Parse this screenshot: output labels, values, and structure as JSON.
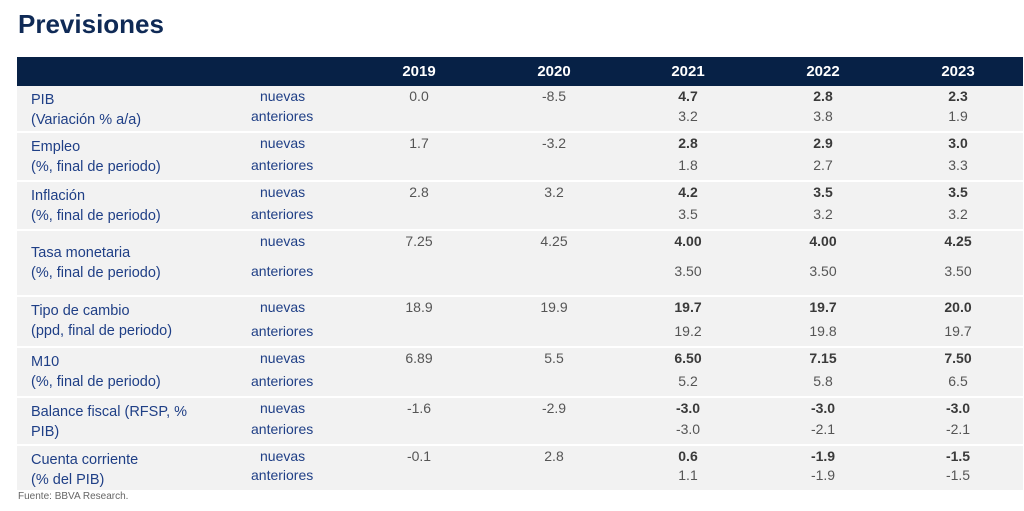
{
  "title": "Previsiones",
  "source": "Fuente: BBVA Research.",
  "colors": {
    "header_bg": "#072146",
    "label_text": "#1f3f86",
    "row_shade": "#f2f2f2"
  },
  "years": [
    "2019",
    "2020",
    "2021",
    "2022",
    "2023"
  ],
  "rows": [
    {
      "label1": "PIB",
      "label2": "(Variación % a/a)",
      "new_label": "nuevas",
      "old_label": "anteriores",
      "nuevas": [
        "0.0",
        "-8.5",
        "4.7",
        "2.8",
        "2.3"
      ],
      "anteriores": [
        "",
        "",
        "3.2",
        "3.8",
        "1.9"
      ]
    },
    {
      "label1": "Empleo",
      "label2": "(%, final de periodo)",
      "new_label": "nuevas",
      "old_label": "anteriores",
      "nuevas": [
        "1.7",
        "-3.2",
        "2.8",
        "2.9",
        "3.0"
      ],
      "anteriores": [
        "",
        "",
        "1.8",
        "2.7",
        "3.3"
      ]
    },
    {
      "label1": "Inflación",
      "label2": "(%, final de periodo)",
      "new_label": "nuevas",
      "old_label": "anteriores",
      "nuevas": [
        "2.8",
        "3.2",
        "4.2",
        "3.5",
        "3.5"
      ],
      "anteriores": [
        "",
        "",
        "3.5",
        "3.2",
        "3.2"
      ]
    },
    {
      "label1": "Tasa monetaria",
      "label2": "(%, final de periodo)",
      "new_label": "nuevas",
      "old_label": "anteriores",
      "nuevas": [
        "7.25",
        "4.25",
        "4.00",
        "4.00",
        "4.25"
      ],
      "anteriores": [
        "",
        "",
        "3.50",
        "3.50",
        "3.50"
      ]
    },
    {
      "label1": "Tipo de cambio",
      "label2": "(ppd, final de periodo)",
      "new_label": "nuevas",
      "old_label": "anteriores",
      "nuevas": [
        "18.9",
        "19.9",
        "19.7",
        "19.7",
        "20.0"
      ],
      "anteriores": [
        "",
        "",
        "19.2",
        "19.8",
        "19.7"
      ]
    },
    {
      "label1": "M10",
      "label2": "(%, final de periodo)",
      "new_label": "nuevas",
      "old_label": "anteriores",
      "nuevas": [
        "6.89",
        "5.5",
        "6.50",
        "7.15",
        "7.50"
      ],
      "anteriores": [
        "",
        "",
        "5.2",
        "5.8",
        "6.5"
      ]
    },
    {
      "label1": "Balance fiscal (RFSP, %",
      "label2": "PIB)",
      "new_label": "nuevas",
      "old_label": "anteriores",
      "nuevas": [
        "-1.6",
        "-2.9",
        "-3.0",
        "-3.0",
        "-3.0"
      ],
      "anteriores": [
        "",
        "",
        "-3.0",
        "-2.1",
        "-2.1"
      ]
    },
    {
      "label1": "Cuenta corriente",
      "label2": "(% del PIB)",
      "new_label": "nuevas",
      "old_label": "anteriores",
      "nuevas": [
        "-0.1",
        "2.8",
        "0.6",
        "-1.9",
        "-1.5"
      ],
      "anteriores": [
        "",
        "",
        "1.1",
        "-1.9",
        "-1.5"
      ]
    }
  ]
}
